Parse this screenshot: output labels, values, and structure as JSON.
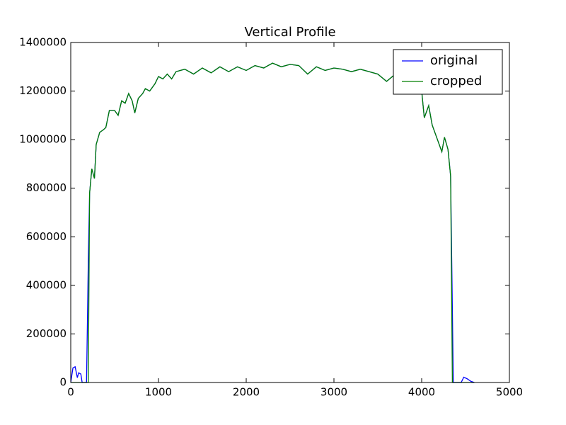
{
  "chart_data": {
    "type": "line",
    "title": "Vertical Profile",
    "x": [
      0,
      25,
      50,
      75,
      90,
      115,
      130,
      180,
      200,
      215,
      240,
      270,
      290,
      330,
      370,
      400,
      440,
      500,
      540,
      580,
      620,
      660,
      700,
      730,
      770,
      820,
      850,
      900,
      960,
      1000,
      1050,
      1100,
      1150,
      1200,
      1300,
      1400,
      1500,
      1600,
      1700,
      1800,
      1900,
      2000,
      2100,
      2200,
      2300,
      2400,
      2500,
      2600,
      2700,
      2800,
      2900,
      3000,
      3100,
      3200,
      3300,
      3400,
      3500,
      3600,
      3700,
      3800,
      3900,
      4000,
      4030,
      4080,
      4120,
      4170,
      4230,
      4260,
      4300,
      4330,
      4350,
      4360,
      4450,
      4480,
      4520,
      4560,
      4600
    ],
    "series": [
      {
        "name": "original",
        "color": "#0000ff",
        "values": [
          0,
          60000,
          65000,
          20000,
          40000,
          35000,
          0,
          0,
          500000,
          780000,
          880000,
          840000,
          980000,
          1030000,
          1040000,
          1050000,
          1120000,
          1120000,
          1100000,
          1160000,
          1150000,
          1190000,
          1160000,
          1110000,
          1170000,
          1190000,
          1210000,
          1200000,
          1230000,
          1260000,
          1250000,
          1270000,
          1250000,
          1280000,
          1290000,
          1270000,
          1295000,
          1275000,
          1300000,
          1280000,
          1300000,
          1285000,
          1305000,
          1295000,
          1315000,
          1300000,
          1310000,
          1305000,
          1270000,
          1300000,
          1285000,
          1295000,
          1290000,
          1280000,
          1290000,
          1280000,
          1270000,
          1240000,
          1270000,
          1250000,
          1240000,
          1200000,
          1090000,
          1140000,
          1060000,
          1010000,
          950000,
          1010000,
          960000,
          850000,
          300000,
          0,
          0,
          22000,
          15000,
          5000,
          0
        ]
      },
      {
        "name": "cropped",
        "color": "#007f00",
        "values": [
          0,
          0,
          0,
          0,
          0,
          0,
          0,
          0,
          0,
          780000,
          880000,
          840000,
          980000,
          1030000,
          1040000,
          1050000,
          1120000,
          1120000,
          1100000,
          1160000,
          1150000,
          1190000,
          1160000,
          1110000,
          1170000,
          1190000,
          1210000,
          1200000,
          1230000,
          1260000,
          1250000,
          1270000,
          1250000,
          1280000,
          1290000,
          1270000,
          1295000,
          1275000,
          1300000,
          1280000,
          1300000,
          1285000,
          1305000,
          1295000,
          1315000,
          1300000,
          1310000,
          1305000,
          1270000,
          1300000,
          1285000,
          1295000,
          1290000,
          1280000,
          1290000,
          1280000,
          1270000,
          1240000,
          1270000,
          1250000,
          1240000,
          1200000,
          1090000,
          1140000,
          1060000,
          1010000,
          950000,
          1010000,
          960000,
          850000,
          0,
          0,
          0,
          0,
          0,
          0,
          0
        ]
      }
    ],
    "xlim": [
      0,
      5000
    ],
    "xticks": [
      0,
      1000,
      2000,
      3000,
      4000,
      5000
    ],
    "ylim": [
      0,
      1400000
    ],
    "yticks": [
      0,
      200000,
      400000,
      600000,
      800000,
      1000000,
      1200000,
      1400000
    ],
    "grid": false,
    "legend": "upper right"
  }
}
